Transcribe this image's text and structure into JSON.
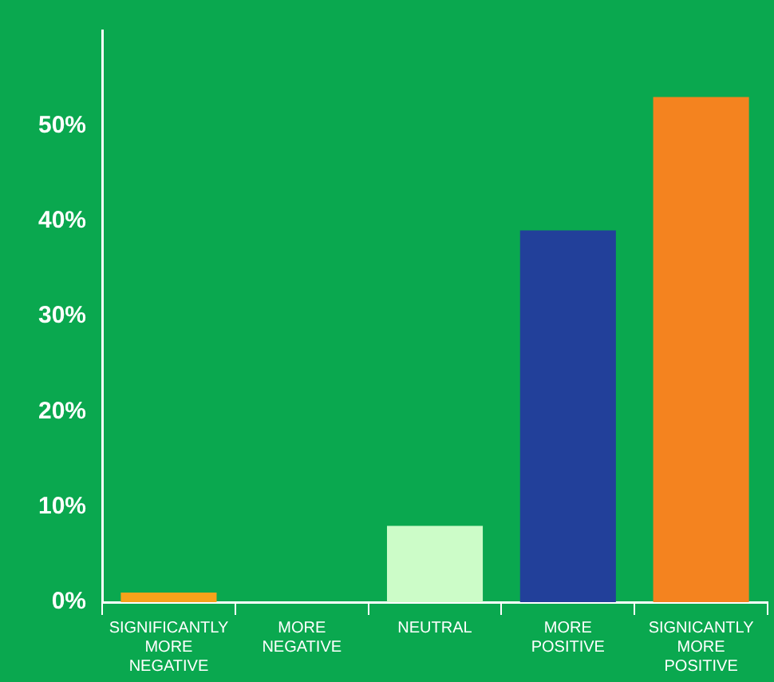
{
  "chart_data": {
    "type": "bar",
    "categories": [
      "SIGNIFICANTLY MORE NEGATIVE",
      "MORE NEGATIVE",
      "NEUTRAL",
      "MORE POSITIVE",
      "SIGNICANTLY MORE POSITIVE"
    ],
    "values": [
      1,
      0,
      8,
      39,
      53
    ],
    "colors": [
      "#f7a21b",
      "#f4831f",
      "#ccfcc8",
      "#22409a",
      "#f4831f"
    ],
    "ylim": [
      0,
      60
    ],
    "yticks": [
      {
        "value": 0,
        "label": "0%"
      },
      {
        "value": 10,
        "label": "10%"
      },
      {
        "value": 20,
        "label": "20%"
      },
      {
        "value": 30,
        "label": "30%"
      },
      {
        "value": 40,
        "label": "40%"
      },
      {
        "value": 50,
        "label": "50%"
      }
    ],
    "grid": false
  }
}
